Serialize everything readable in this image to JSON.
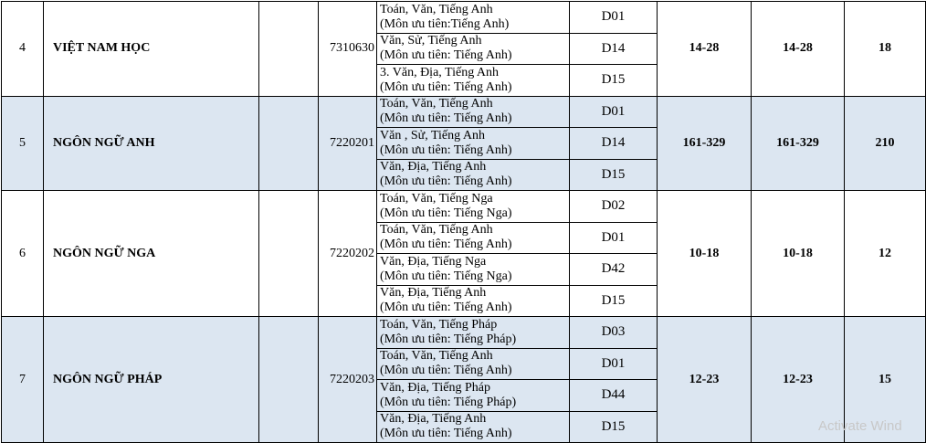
{
  "rows": [
    {
      "num": "4",
      "name": "VIỆT NAM HỌC",
      "code": "7310630",
      "c1": "14-28",
      "c2": "14-28",
      "c3": "18",
      "shaded": false,
      "combos": [
        {
          "subjects": "Toán, Văn, Tiếng Anh",
          "priority": "(Môn ưu tiên:Tiếng Anh)",
          "block": "D01"
        },
        {
          "subjects": "Văn, Sử, Tiếng Anh",
          "priority": "(Môn ưu tiên: Tiếng Anh)",
          "block": "D14"
        },
        {
          "subjects": "3. Văn, Địa, Tiếng Anh",
          "priority": "(Môn ưu tiên: Tiếng Anh)",
          "block": "D15"
        }
      ]
    },
    {
      "num": "5",
      "name": "NGÔN NGỮ ANH",
      "code": "7220201",
      "c1": "161-329",
      "c2": "161-329",
      "c3": "210",
      "shaded": true,
      "combos": [
        {
          "subjects": "Toán, Văn, Tiếng Anh",
          "priority": "(Môn ưu tiên: Tiếng Anh)",
          "block": "D01"
        },
        {
          "subjects": "Văn , Sử, Tiếng Anh",
          "priority": "(Môn ưu tiên: Tiếng Anh)",
          "block": "D14"
        },
        {
          "subjects": "Văn, Địa, Tiếng Anh",
          "priority": "(Môn ưu tiên: Tiếng Anh)",
          "block": "D15"
        }
      ]
    },
    {
      "num": "6",
      "name": "NGÔN NGỮ NGA",
      "code": "7220202",
      "c1": "10-18",
      "c2": "10-18",
      "c3": "12",
      "shaded": false,
      "combos": [
        {
          "subjects": "Toán, Văn, Tiếng Nga",
          "priority": "(Môn ưu tiên: Tiếng Nga)",
          "block": "D02"
        },
        {
          "subjects": "Toán, Văn, Tiếng Anh",
          "priority": "(Môn ưu tiên: Tiếng Anh)",
          "block": "D01"
        },
        {
          "subjects": "Văn, Địa, Tiếng Nga",
          "priority": "(Môn ưu tiên: Tiếng Nga)",
          "block": "D42"
        },
        {
          "subjects": "Văn, Địa, Tiếng Anh",
          "priority": "(Môn ưu tiên: Tiếng Anh)",
          "block": "D15"
        }
      ]
    },
    {
      "num": "7",
      "name": "NGÔN NGỮ PHÁP",
      "code": "7220203",
      "c1": "12-23",
      "c2": "12-23",
      "c3": "15",
      "shaded": true,
      "combos": [
        {
          "subjects": "Toán, Văn, Tiếng Pháp",
          "priority": "(Môn ưu tiên: Tiếng Pháp)",
          "block": "D03"
        },
        {
          "subjects": "Toán, Văn, Tiếng Anh",
          "priority": "(Môn ưu tiên: Tiếng Anh)",
          "block": "D01"
        },
        {
          "subjects": "Văn, Địa, Tiếng Pháp",
          "priority": "(Môn ưu tiên: Tiếng Pháp)",
          "block": "D44"
        },
        {
          "subjects": "Văn, Địa, Tiếng Anh",
          "priority": "(Môn ưu tiên: Tiếng Anh)",
          "block": "D15"
        }
      ]
    }
  ],
  "watermark": "Activate Wind"
}
